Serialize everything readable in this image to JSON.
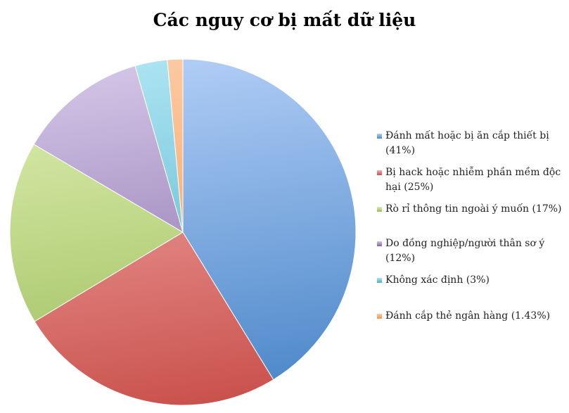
{
  "chart_data": {
    "type": "pie",
    "title": "Các nguy cơ bị mất dữ liệu",
    "legend_position": "right",
    "start": "top",
    "direction": "clockwise",
    "slices": [
      {
        "label": "Đánh mất hoặc bị ăn cắp thiết bị (41%)",
        "value": 41,
        "color": "#4a86c8",
        "light": "#b0cdf6"
      },
      {
        "label": "Bị hack hoặc nhiễm phần mềm độc hại (25%)",
        "value": 25,
        "color": "#c9504b",
        "light": "#f5b0ae"
      },
      {
        "label": "Rò rỉ thông tin ngoài ý muốn (17%)",
        "value": 17,
        "color": "#9bbb59",
        "light": "#dcefb0"
      },
      {
        "label": "Do đồng nghiệp/người thân sơ ý (12%)",
        "value": 12,
        "color": "#8064a2",
        "light": "#d2c4e6"
      },
      {
        "label": "Không xác định (3%)",
        "value": 3,
        "color": "#4bacc6",
        "light": "#aae3f2"
      },
      {
        "label": "Đánh cắp thẻ ngân hàng (1.43%)",
        "value": 1.43,
        "color": "#f79646",
        "light": "#fcc9a2"
      }
    ]
  }
}
